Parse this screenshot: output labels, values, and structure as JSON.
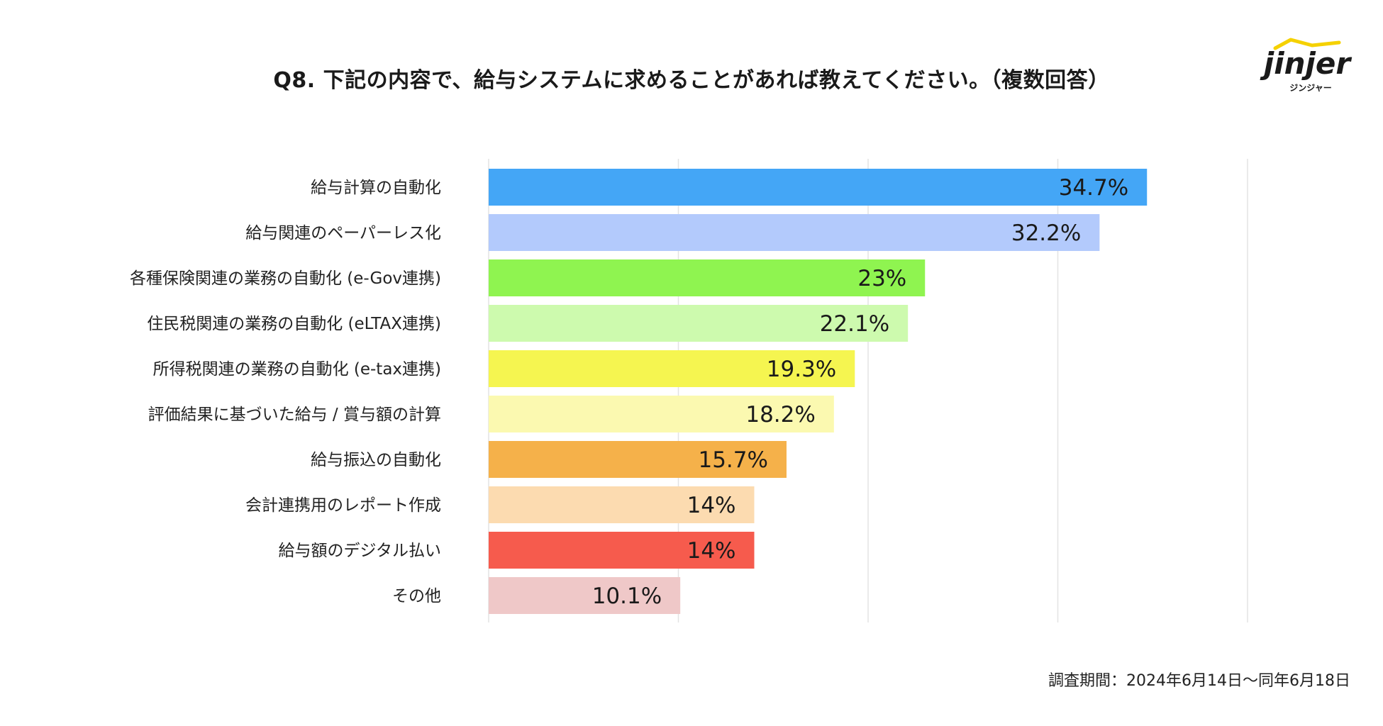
{
  "title": "Q8. 下記の内容で、給与システムに求めることがあれば教えてください。（複数回答）",
  "logo": {
    "brand": "jinjer",
    "subtitle": "ジンジャー",
    "accent": "#f5d100",
    "text_color": "#1a1a1a"
  },
  "footnote": "調査期間：2024年6月14日〜同年6月18日",
  "chart_data": {
    "type": "bar",
    "orientation": "horizontal",
    "title": "Q8. 下記の内容で、給与システムに求めることがあれば教えてください。（複数回答）",
    "xlabel": "",
    "ylabel": "",
    "xlim": [
      0,
      40
    ],
    "grid": true,
    "categories": [
      "給与計算の自動化",
      "給与関連のペーパーレス化",
      "各種保険関連の業務の自動化 (e-Gov連携)",
      "住民税関連の業務の自動化 (eLTAX連携)",
      "所得税関連の業務の自動化 (e-tax連携)",
      "評価結果に基づいた給与 / 賞与額の計算",
      "給与振込の自動化",
      "会計連携用のレポート作成",
      "給与額のデジタル払い",
      "その他"
    ],
    "values": [
      34.7,
      32.2,
      23,
      22.1,
      19.3,
      18.2,
      15.7,
      14,
      14,
      10.1
    ],
    "value_labels": [
      "34.7%",
      "32.2%",
      "23%",
      "22.1%",
      "19.3%",
      "18.2%",
      "15.7%",
      "14%",
      "14%",
      "10.1%"
    ],
    "colors": [
      "#44a6f6",
      "#b3cafc",
      "#8ff450",
      "#cdfaae",
      "#f5f550",
      "#fbf9b0",
      "#f5b14a",
      "#fcdbb0",
      "#f65b4d",
      "#efc8c8"
    ]
  }
}
